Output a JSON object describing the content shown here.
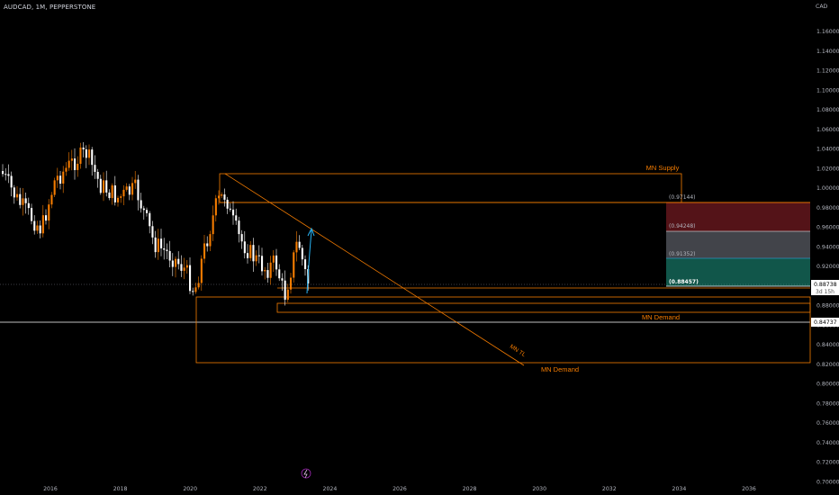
{
  "header": {
    "symbol": "AUDCAD, 1M, PEPPERSTONE"
  },
  "currency": "CAD",
  "y_ticks": [
    "1.16000",
    "1.14000",
    "1.12000",
    "1.10000",
    "1.08000",
    "1.06000",
    "1.04000",
    "1.02000",
    "1.00000",
    "0.98000",
    "0.96000",
    "0.94000",
    "0.92000",
    "0.90000",
    "0.88000",
    "0.86000",
    "0.84000",
    "0.82000",
    "0.80000",
    "0.78000",
    "0.76000",
    "0.74000",
    "0.72000",
    "0.70000"
  ],
  "x_ticks": [
    "2016",
    "2018",
    "2020",
    "2022",
    "2024",
    "2026",
    "2028",
    "2030",
    "2032",
    "2034",
    "2036"
  ],
  "annotations": {
    "supply_label": "MN Supply",
    "demand_label_1": "MN Demand",
    "demand_label_2": "MN Demand",
    "trendline_label": "MN TL"
  },
  "position": {
    "target_price": "(0.97144)",
    "stop_price": "(0.94248)",
    "entry_price": "(0.91352)",
    "stop_level": "(0.88457)"
  },
  "price_badges": {
    "current_price": "0.88738",
    "countdown": "3d 15h",
    "level_price": "0.84737"
  },
  "colors": {
    "background": "#000000",
    "orange": "#f57c00",
    "bull_candle": "#f57c00",
    "bear_candle": "#ffffff",
    "target_zone": "#f23645",
    "stop_zone": "#22ab94",
    "arrow": "#29b6f6"
  },
  "icons": {
    "bottom_marker": "lightning-icon"
  }
}
